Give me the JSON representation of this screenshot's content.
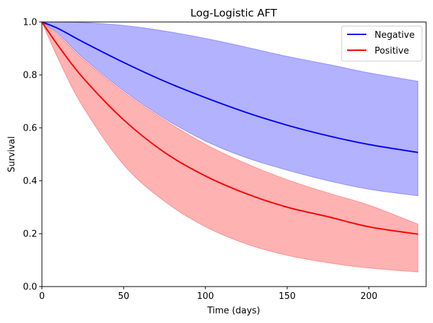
{
  "chart_data": {
    "type": "line",
    "title": "Log-Logistic AFT",
    "xlabel": "Time (days)",
    "ylabel": "Survival",
    "xlim": [
      0,
      235
    ],
    "ylim": [
      0.0,
      1.0
    ],
    "xticks": [
      0,
      50,
      100,
      150,
      200
    ],
    "xtick_labels": [
      "0",
      "50",
      "100",
      "150",
      "200"
    ],
    "yticks": [
      0.0,
      0.2,
      0.4,
      0.6,
      0.8,
      1.0
    ],
    "ytick_labels": [
      "0.0",
      "0.2",
      "0.4",
      "0.6",
      "0.8",
      "1.0"
    ],
    "grid": false,
    "legend_position": "top-right",
    "x": [
      0,
      10,
      25,
      50,
      75,
      100,
      125,
      150,
      175,
      200,
      230
    ],
    "series": [
      {
        "name": "Negative",
        "color": "#0000ff",
        "band_color": "#0000ff",
        "values": [
          1.0,
          0.975,
          0.925,
          0.847,
          0.776,
          0.714,
          0.658,
          0.61,
          0.57,
          0.537,
          0.507
        ],
        "lower": [
          1.0,
          0.955,
          0.865,
          0.74,
          0.635,
          0.55,
          0.487,
          0.44,
          0.4,
          0.368,
          0.343
        ],
        "upper": [
          1.0,
          1.0,
          0.998,
          0.987,
          0.966,
          0.938,
          0.905,
          0.87,
          0.84,
          0.808,
          0.776
        ]
      },
      {
        "name": "Positive",
        "color": "#ff0000",
        "band_color": "#ff0000",
        "values": [
          1.0,
          0.91,
          0.79,
          0.63,
          0.507,
          0.418,
          0.351,
          0.3,
          0.264,
          0.226,
          0.198
        ],
        "lower": [
          1.0,
          0.86,
          0.68,
          0.46,
          0.322,
          0.226,
          0.161,
          0.118,
          0.09,
          0.07,
          0.055
        ],
        "upper": [
          1.0,
          0.95,
          0.86,
          0.735,
          0.63,
          0.538,
          0.465,
          0.404,
          0.354,
          0.308,
          0.236
        ]
      }
    ]
  }
}
